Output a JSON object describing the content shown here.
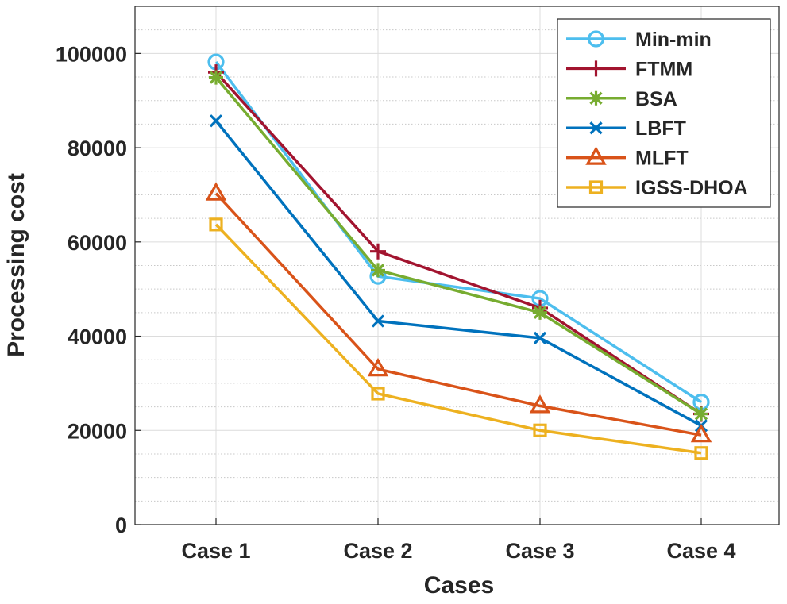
{
  "chart_data": {
    "type": "line",
    "title": "",
    "xlabel": "Cases",
    "ylabel": "Processing cost",
    "categories": [
      "Case 1",
      "Case 2",
      "Case 3",
      "Case 4"
    ],
    "ylim": [
      0,
      110000
    ],
    "yticks": [
      0,
      20000,
      40000,
      60000,
      80000,
      100000
    ],
    "ytick_labels": [
      "0",
      "20000",
      "40000",
      "60000",
      "80000",
      "100000"
    ],
    "grid": true,
    "minor_grid": true,
    "legend_position": "top-right",
    "series": [
      {
        "name": "Min-min",
        "color": "#4DBEEE",
        "marker": "circle",
        "values": [
          98200,
          52700,
          48000,
          26000
        ]
      },
      {
        "name": "FTMM",
        "color": "#A2142F",
        "marker": "plus",
        "values": [
          96000,
          58000,
          46000,
          23500
        ]
      },
      {
        "name": "BSA",
        "color": "#77AC30",
        "marker": "asterisk",
        "values": [
          94900,
          54000,
          45000,
          23500
        ]
      },
      {
        "name": "LBFT",
        "color": "#0072BD",
        "marker": "x",
        "values": [
          85700,
          43200,
          39600,
          21000
        ]
      },
      {
        "name": "MLFT",
        "color": "#D95319",
        "marker": "triangle",
        "values": [
          70300,
          33000,
          25200,
          19000
        ]
      },
      {
        "name": "IGSS-DHOA",
        "color": "#EDB120",
        "marker": "square",
        "values": [
          63700,
          27800,
          20000,
          15200
        ]
      }
    ]
  }
}
